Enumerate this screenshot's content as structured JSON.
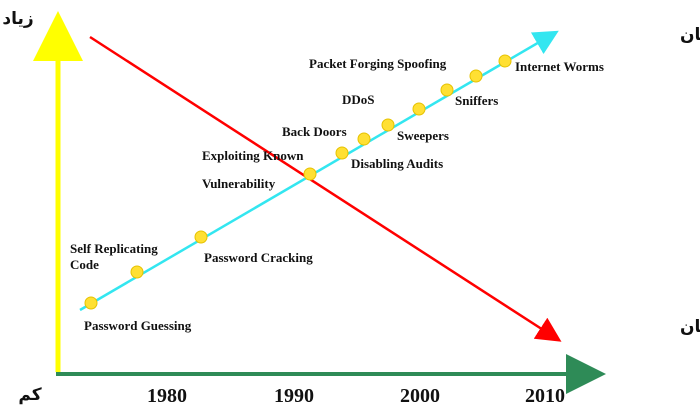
{
  "axes": {
    "y_top_label": "زیاد",
    "y_bottom_label": "کم",
    "y_color": "#ffff00",
    "x_color": "#2e8b57"
  },
  "x_ticks": [
    "1980",
    "1990",
    "2000",
    "2010"
  ],
  "lines": {
    "attacker_tools": {
      "label": "ابزار مهاجمان",
      "color": "#33e6f0"
    },
    "attacker_knowledge": {
      "label": "دانش مهاجمان",
      "color": "#ff0000"
    }
  },
  "points": [
    {
      "name": "password-guessing",
      "label_lines": [
        "Password Guessing"
      ]
    },
    {
      "name": "self-replicating-code",
      "label_lines": [
        "Self Replicating",
        "Code"
      ]
    },
    {
      "name": "password-cracking",
      "label_lines": [
        "Password Cracking"
      ]
    },
    {
      "name": "exploiting-known-vulnerability",
      "label_lines": [
        "Exploiting Known",
        "Vulnerability"
      ]
    },
    {
      "name": "disabling-audits",
      "label_lines": [
        "Disabling Audits"
      ]
    },
    {
      "name": "back-doors",
      "label_lines": [
        "Back Doors"
      ]
    },
    {
      "name": "sweepers",
      "label_lines": [
        "Sweepers"
      ]
    },
    {
      "name": "ddos",
      "label_lines": [
        "DDoS"
      ]
    },
    {
      "name": "sniffers",
      "label_lines": [
        "Sniffers"
      ]
    },
    {
      "name": "packet-forging-spoofing",
      "label_lines": [
        "Packet Forging Spoofing"
      ]
    },
    {
      "name": "internet-worms",
      "label_lines": [
        "Internet Worms"
      ]
    }
  ],
  "point_color": "#ffe033"
}
